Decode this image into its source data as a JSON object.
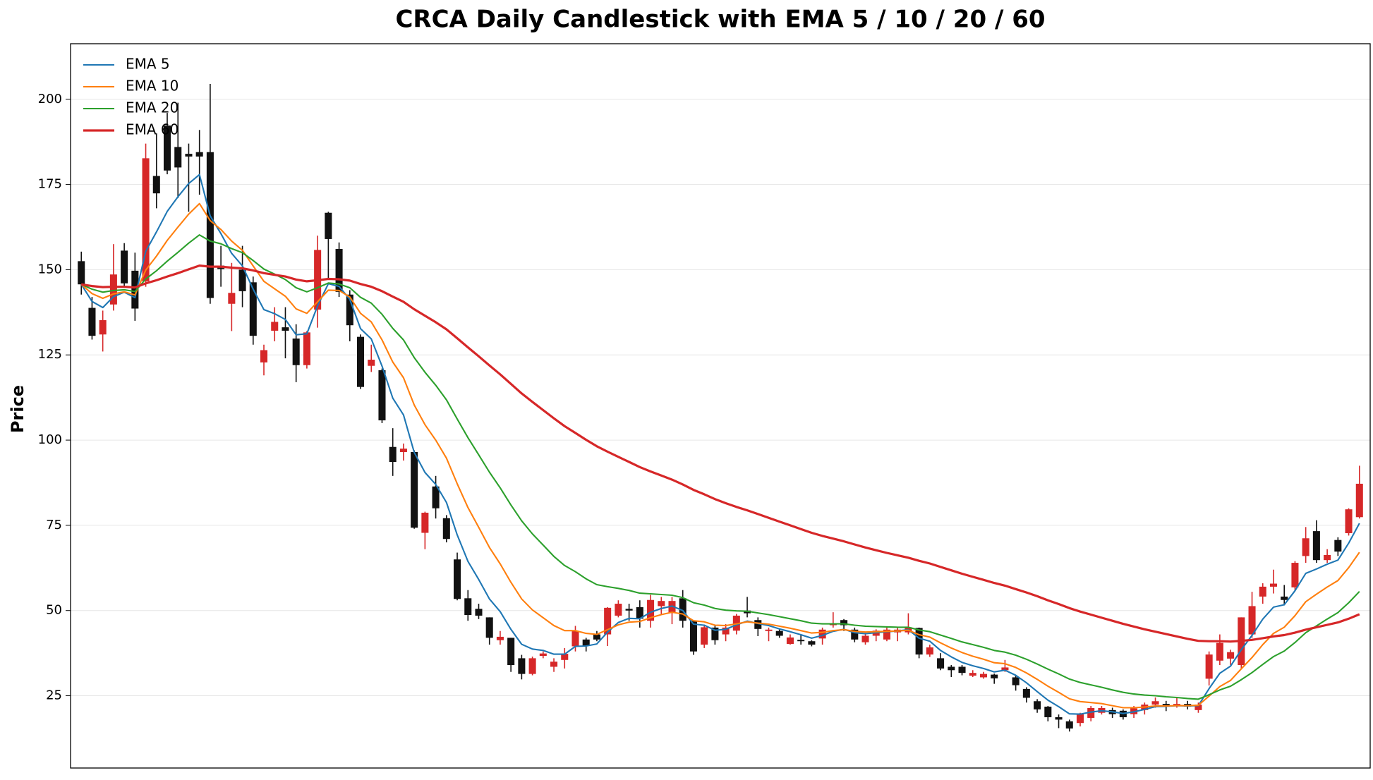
{
  "chart_data": {
    "type": "candlestick",
    "title": "CRCA Daily Candlestick with EMA 5 / 10 / 20 / 60",
    "y_label": "Price",
    "categories": [
      null,
      null,
      null,
      null,
      null,
      null,
      null,
      null,
      null,
      null,
      null,
      null,
      null,
      null,
      null,
      null,
      null,
      null,
      null,
      null,
      null,
      null,
      null,
      null,
      null,
      null,
      null,
      null,
      null,
      null,
      null,
      null,
      null,
      null,
      null,
      null,
      null,
      null,
      null,
      null,
      null,
      null,
      null,
      null,
      null,
      null,
      null,
      null,
      null,
      null,
      null,
      null,
      null,
      null,
      null,
      null,
      null,
      null,
      null,
      null,
      null,
      null,
      null,
      null,
      null,
      null,
      null,
      null,
      null,
      null,
      null,
      null,
      null,
      null,
      null,
      null,
      null,
      null,
      null,
      null,
      null,
      null,
      null,
      null,
      null,
      null,
      null,
      null,
      null,
      null,
      null,
      null,
      null,
      null,
      null,
      null,
      null,
      null,
      null,
      null,
      null,
      null,
      null,
      null,
      null,
      null,
      null,
      null,
      null,
      null,
      null,
      null,
      null,
      null,
      null,
      null,
      null,
      null,
      null,
      null
    ],
    "open": [
      152.5,
      138.8,
      131,
      139.8,
      155.6,
      149.7,
      146.6,
      177.5,
      192.3,
      186,
      184,
      184.5,
      184.5,
      151.2,
      140,
      150,
      146.3,
      122.8,
      132.1,
      133.1,
      129.8,
      122,
      138.3,
      166.7,
      156.1,
      142.7,
      130.3,
      121.8,
      120.5,
      98,
      96.5,
      96.5,
      72.8,
      86.4,
      77.1,
      65,
      53.6,
      50.5,
      48,
      41.3,
      42,
      36,
      31.4,
      36.7,
      33.5,
      35.5,
      39.5,
      41.5,
      43,
      43,
      48.5,
      50.5,
      51,
      47,
      51.3,
      49.3,
      53.6,
      47,
      40,
      45,
      43,
      44.1,
      50,
      47.2,
      44,
      44,
      40.2,
      41.4,
      41,
      41.8,
      45.7,
      47.2,
      44.4,
      40.7,
      42.6,
      41.5,
      43.6,
      43.6,
      44.9,
      37.1,
      36,
      33.5,
      33.5,
      30.9,
      30.4,
      31.2,
      32.5,
      30.4,
      27,
      23.4,
      21.8,
      18.7,
      17.5,
      17,
      18.5,
      20,
      20.8,
      20.6,
      19.6,
      20.8,
      22.4,
      22.6,
      22.1,
      22.6,
      20.8,
      30,
      35.3,
      35.9,
      34,
      43,
      54.1,
      57,
      54.1,
      56.8,
      66,
      73.3,
      64.8,
      70.7,
      72.7,
      77.4
    ],
    "high": [
      155.3,
      142,
      138,
      157.5,
      157.8,
      155,
      187,
      190,
      196,
      199,
      187,
      191,
      204.5,
      157,
      152,
      157,
      148,
      128,
      139,
      139,
      134,
      132,
      160,
      167,
      158,
      144,
      131,
      128,
      121,
      103.5,
      99,
      97,
      79,
      89.5,
      78,
      67,
      56,
      52,
      48,
      44,
      42,
      37,
      36.5,
      38,
      36,
      39,
      45.5,
      42,
      44,
      51,
      53,
      52,
      53,
      54.6,
      54,
      54,
      56,
      47,
      45.5,
      45.5,
      46,
      49,
      54,
      48,
      45,
      44.5,
      43,
      43,
      41.3,
      45,
      49.5,
      47.5,
      45,
      43.5,
      44.5,
      45,
      44.9,
      49.2,
      45,
      40,
      37.5,
      34,
      34,
      32.5,
      32,
      31.5,
      35.5,
      31,
      27.5,
      24,
      22,
      19.5,
      18,
      20,
      22,
      22,
      21.5,
      21,
      22,
      23,
      24.5,
      23.5,
      24.5,
      23.5,
      23,
      38,
      43,
      38.5,
      48,
      55.5,
      58,
      62,
      57.5,
      64.5,
      74.5,
      76.5,
      68,
      71.5,
      80,
      92.5
    ],
    "low": [
      142.7,
      129.5,
      126,
      138,
      145,
      135,
      145,
      168,
      178,
      171,
      167,
      172,
      140,
      145,
      132,
      139,
      128,
      119,
      129,
      124,
      117,
      121,
      133,
      147,
      142,
      129,
      115,
      120,
      105,
      89.5,
      94,
      74,
      68,
      77,
      70,
      53,
      47,
      47.5,
      40,
      40,
      32,
      29.8,
      31,
      36,
      32,
      33,
      38,
      38,
      41,
      39.6,
      48,
      47,
      45,
      45,
      49,
      46,
      45,
      37,
      39,
      40,
      41,
      43,
      48,
      42.5,
      41,
      42,
      40,
      40,
      39.5,
      40,
      45,
      44,
      40.7,
      40,
      41,
      41,
      41,
      43,
      36,
      36.4,
      32.5,
      30.5,
      31,
      30.5,
      30,
      28.5,
      32,
      26.5,
      23,
      20,
      17.5,
      15.5,
      14.5,
      16,
      17.5,
      19.5,
      18.5,
      18,
      18.5,
      19.5,
      21.5,
      20.5,
      21.5,
      21,
      20,
      28,
      34,
      34,
      33,
      42,
      52,
      55,
      51.5,
      56,
      64,
      64,
      64,
      66,
      72,
      77
    ],
    "close": [
      145.7,
      130.6,
      135.2,
      148.6,
      146,
      138.6,
      182.7,
      172.4,
      179.1,
      180,
      183.2,
      183.2,
      141.7,
      150.2,
      143.2,
      143.7,
      130.6,
      126.4,
      134.7,
      132.1,
      122,
      131.6,
      155.8,
      159,
      143.5,
      133.7,
      115.6,
      123.6,
      105.8,
      93.6,
      97.5,
      74.3,
      78.7,
      80,
      71,
      53.4,
      48.7,
      48.5,
      42,
      42.3,
      34,
      31.4,
      36,
      37.4,
      35,
      37.3,
      44,
      39.7,
      41.5,
      50.8,
      52,
      50,
      47.6,
      53.1,
      52.8,
      52.8,
      47,
      38,
      45.1,
      41.3,
      45,
      48.5,
      49.2,
      44.6,
      44.4,
      42.6,
      42.1,
      41,
      40,
      44.4,
      46.2,
      45.7,
      41.5,
      42.6,
      44.1,
      44.4,
      44.4,
      45.1,
      37.1,
      39.2,
      33,
      32.5,
      31.7,
      31.7,
      31.4,
      30.1,
      33.3,
      28.1,
      24.4,
      21,
      18.7,
      18,
      15.4,
      19.6,
      21.4,
      21.4,
      19.6,
      18.7,
      21.3,
      22.4,
      23.4,
      22.1,
      22.6,
      21.8,
      22.4,
      37.1,
      40.5,
      37.8,
      48,
      51.3,
      57,
      57.9,
      53.1,
      64,
      71.2,
      64.8,
      66.3,
      67.3,
      79.7,
      87.2
    ],
    "up_color": "#d62728",
    "down_color": "#111111",
    "series": [
      {
        "name": "EMA 5",
        "color": "#1f77b4",
        "values": [
          145.7,
          140.7,
          138.9,
          142.1,
          143.4,
          141.8,
          155.4,
          161.1,
          167.1,
          171.4,
          175.3,
          177.9,
          165.8,
          160.6,
          154.8,
          151.1,
          144.3,
          138.3,
          137.1,
          135.4,
          130.9,
          131.2,
          139.4,
          145.9,
          145.1,
          141.3,
          132.7,
          129.7,
          121.7,
          112.3,
          107.4,
          96.4,
          90.5,
          87.0,
          81.7,
          72.2,
          64.4,
          59.1,
          53.4,
          49.7,
          44.5,
          40.1,
          38.7,
          38.3,
          37.2,
          37.2,
          39.5,
          39.6,
          40.2,
          43.7,
          46.5,
          47.7,
          47.6,
          49.5,
          50.6,
          51.3,
          50.0,
          46.0,
          45.7,
          44.2,
          44.5,
          45.8,
          46.9,
          46.2,
          45.6,
          44.6,
          43.8,
          42.9,
          41.9,
          42.7,
          43.9,
          44.5,
          43.5,
          43.2,
          43.5,
          43.8,
          44.0,
          44.4,
          41.9,
          41.0,
          38.3,
          36.4,
          34.8,
          33.8,
          33.0,
          32.0,
          32.5,
          31.0,
          28.8,
          26.2,
          23.7,
          21.8,
          19.7,
          19.6,
          20.2,
          20.6,
          20.3,
          19.8,
          20.3,
          21.0,
          21.8,
          21.9,
          22.1,
          22.0,
          22.1,
          27.1,
          31.6,
          33.7,
          38.5,
          42.7,
          47.5,
          51.0,
          51.7,
          55.8,
          60.9,
          62.2,
          63.6,
          64.8,
          69.8,
          75.6
        ]
      },
      {
        "name": "EMA 10",
        "color": "#ff7f0e",
        "values": [
          145.7,
          143.0,
          141.6,
          142.9,
          143.5,
          142.6,
          149.9,
          154.0,
          158.6,
          162.5,
          166.3,
          169.4,
          164.4,
          161.8,
          158.4,
          155.7,
          151.1,
          146.6,
          144.4,
          142.2,
          138.5,
          137.2,
          140.6,
          144.0,
          143.9,
          142.0,
          137.2,
          134.7,
          129.4,
          122.9,
          118.3,
          110.3,
          104.5,
          100.0,
          94.7,
          87.2,
          80.2,
          74.4,
          68.5,
          63.7,
          58.3,
          53.4,
          50.2,
          47.9,
          45.6,
          44.1,
          44.1,
          43.3,
          43.0,
          44.4,
          45.8,
          46.6,
          46.8,
          47.9,
          48.8,
          49.5,
          49.0,
          47.0,
          46.7,
          45.7,
          45.6,
          46.1,
          46.7,
          46.3,
          46.0,
          45.4,
          44.8,
          44.1,
          43.4,
          43.6,
          44.1,
          44.4,
          43.9,
          43.7,
          43.8,
          43.9,
          44.0,
          44.2,
          42.9,
          42.2,
          40.5,
          39.0,
          37.7,
          36.6,
          35.7,
          34.7,
          34.4,
          33.3,
          31.7,
          29.8,
          27.8,
          26.0,
          24.1,
          23.3,
          23.0,
          22.7,
          22.1,
          21.5,
          21.5,
          21.7,
          22.0,
          22.0,
          22.1,
          22.1,
          22.2,
          24.9,
          27.7,
          29.5,
          32.9,
          36.2,
          40.0,
          43.3,
          45.1,
          48.5,
          52.6,
          54.8,
          56.9,
          58.8,
          62.6,
          67.1
        ]
      },
      {
        "name": "EMA 20",
        "color": "#2ca02c",
        "values": [
          145.7,
          144.3,
          143.4,
          143.9,
          144.1,
          143.6,
          147.3,
          149.7,
          152.5,
          155.1,
          157.8,
          160.2,
          158.4,
          157.6,
          156.2,
          155.0,
          152.7,
          150.2,
          148.7,
          147.1,
          144.7,
          143.5,
          144.7,
          146.1,
          145.8,
          144.7,
          141.9,
          140.2,
          136.9,
          132.8,
          129.4,
          124.2,
          119.9,
          116.1,
          111.8,
          106.2,
          100.7,
          95.7,
          90.6,
          86.0,
          81.0,
          76.3,
          72.5,
          69.2,
          65.9,
          63.2,
          61.4,
          59.3,
          57.6,
          57.0,
          56.5,
          55.9,
          55.1,
          54.9,
          54.7,
          54.5,
          53.8,
          52.3,
          51.6,
          50.6,
          50.1,
          49.9,
          49.8,
          49.3,
          48.8,
          48.2,
          47.6,
          47.0,
          46.3,
          46.1,
          46.1,
          46.1,
          45.7,
          45.4,
          45.3,
          45.2,
          45.1,
          45.1,
          44.3,
          43.8,
          42.8,
          41.8,
          40.8,
          40.0,
          39.2,
          38.3,
          37.8,
          36.9,
          35.7,
          34.3,
          32.8,
          31.4,
          29.9,
          28.9,
          28.2,
          27.5,
          26.7,
          26.0,
          25.5,
          25.2,
          25.0,
          24.7,
          24.5,
          24.2,
          24.0,
          25.3,
          26.7,
          27.8,
          29.7,
          31.8,
          34.2,
          36.5,
          38.1,
          40.6,
          43.5,
          45.5,
          47.5,
          49.4,
          52.3,
          55.6
        ]
      },
      {
        "name": "EMA 60",
        "color": "#d62728",
        "values": [
          145.7,
          145.2,
          144.9,
          145.0,
          145.0,
          144.8,
          146.0,
          146.9,
          148.0,
          149.0,
          150.1,
          151.2,
          150.9,
          150.9,
          150.6,
          150.4,
          149.8,
          149.0,
          148.5,
          148.0,
          147.1,
          146.6,
          146.9,
          147.3,
          147.2,
          146.8,
          145.8,
          145.0,
          143.7,
          142.1,
          140.6,
          138.4,
          136.5,
          134.6,
          132.5,
          129.9,
          127.2,
          124.6,
          121.9,
          119.3,
          116.5,
          113.7,
          111.2,
          108.8,
          106.4,
          104.1,
          102.1,
          100.1,
          98.2,
          96.6,
          95.1,
          93.6,
          92.1,
          90.8,
          89.6,
          88.4,
          87.0,
          85.4,
          84.1,
          82.7,
          81.5,
          80.4,
          79.4,
          78.3,
          77.2,
          76.1,
          75.0,
          73.9,
          72.8,
          71.9,
          71.1,
          70.3,
          69.4,
          68.5,
          67.7,
          66.9,
          66.2,
          65.5,
          64.6,
          63.8,
          62.8,
          61.8,
          60.8,
          59.9,
          59.0,
          58.1,
          57.3,
          56.3,
          55.3,
          54.2,
          53.0,
          51.9,
          50.7,
          49.7,
          48.8,
          47.9,
          47.0,
          46.1,
          45.3,
          44.5,
          43.8,
          43.1,
          42.4,
          41.7,
          41.1,
          41.0,
          41.0,
          40.9,
          41.1,
          41.4,
          41.9,
          42.4,
          42.8,
          43.5,
          44.4,
          45.1,
          45.8,
          46.5,
          47.6,
          48.9
        ]
      }
    ],
    "ylim": [
      3.8,
      216.3
    ],
    "yticks": [
      25,
      50,
      75,
      100,
      125,
      150,
      175,
      200
    ],
    "grid": true,
    "legend": "upper left"
  }
}
